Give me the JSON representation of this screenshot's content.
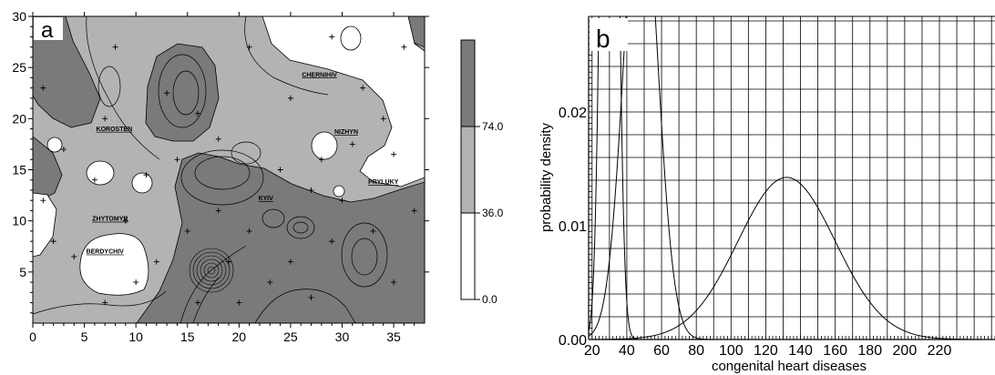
{
  "panel_a": {
    "label": "a",
    "x_ticks": [
      "0",
      "5",
      "10",
      "15",
      "20",
      "25",
      "30",
      "35"
    ],
    "y_ticks": [
      "5",
      "10",
      "15",
      "20",
      "25",
      "30"
    ],
    "colorbar": {
      "labels": [
        "0.0",
        "36.0",
        "74.0"
      ],
      "colors": [
        "#ffffff",
        "#b3b3b3",
        "#7a7a7a"
      ]
    },
    "cities": [
      {
        "name": "CHERNIHIV",
        "x": 27.8,
        "y": 24.1
      },
      {
        "name": "KOROSTEN",
        "x": 7.9,
        "y": 18.8
      },
      {
        "name": "NIZHYN",
        "x": 30.4,
        "y": 18.5
      },
      {
        "name": "PRYLUKY",
        "x": 34.0,
        "y": 13.6
      },
      {
        "name": "KYIV",
        "x": 22.6,
        "y": 12.0
      },
      {
        "name": "ZHYTOMYR",
        "x": 7.5,
        "y": 10.0
      },
      {
        "name": "BERDYCHIV",
        "x": 7.0,
        "y": 6.8
      }
    ]
  },
  "chart_data": {
    "type": "line",
    "panel": "b",
    "xlabel": "congenital heart diseases",
    "ylabel": "probability density",
    "x_tick_labels": [
      "20",
      "40",
      "60",
      "80",
      "100",
      "120",
      "140",
      "160",
      "180",
      "200",
      "220"
    ],
    "y_tick_labels": [
      "0.00",
      "0.01",
      "0.02"
    ],
    "xlim": [
      18,
      252
    ],
    "ylim": [
      0,
      0.0284
    ],
    "grid": true,
    "series": [
      {
        "mean": 30.0,
        "sd": 3.8
      },
      {
        "mean": 48.0,
        "sd": 9.5
      },
      {
        "mean": 132.0,
        "sd": 28.0
      }
    ]
  }
}
